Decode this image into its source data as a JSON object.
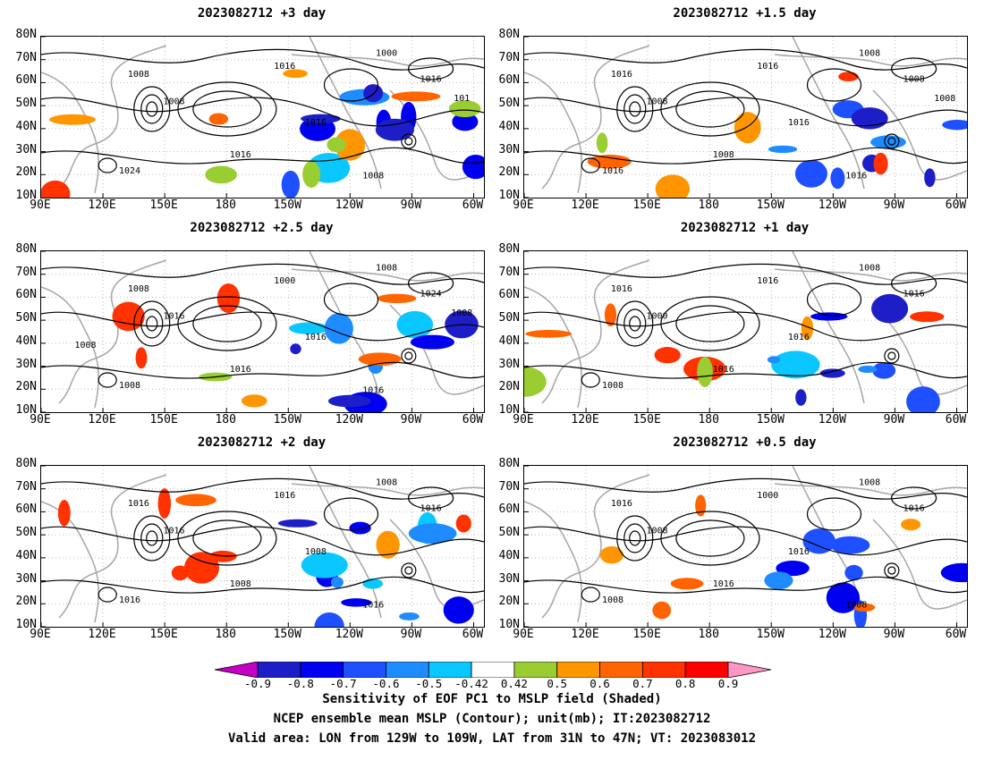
{
  "panels": [
    {
      "title": "2023082712 +3 day",
      "contour_labels": [
        "1000",
        "1008",
        "1008",
        "1016",
        "1016",
        "1016",
        "1024",
        "1016",
        "1008",
        "101"
      ]
    },
    {
      "title": "2023082712 +1.5 day",
      "contour_labels": [
        "1008",
        "1016",
        "1008",
        "1016",
        "1016",
        "1008",
        "1016",
        "1008",
        "1016",
        "1008"
      ]
    },
    {
      "title": "2023082712 +2.5 day",
      "contour_labels": [
        "1008",
        "1008",
        "1016",
        "1016",
        "1000",
        "1024",
        "1008",
        "1016",
        "1016",
        "1008",
        "1008"
      ]
    },
    {
      "title": "2023082712 +1 day",
      "contour_labels": [
        "1008",
        "1016",
        "1000",
        "1016",
        "1016",
        "1016",
        "1008",
        "1016"
      ]
    },
    {
      "title": "2023082712 +2 day",
      "contour_labels": [
        "1008",
        "1016",
        "1016",
        "1008",
        "1016",
        "1016",
        "1016",
        "1008",
        "1016"
      ]
    },
    {
      "title": "2023082712 +0.5 day",
      "contour_labels": [
        "1008",
        "1016",
        "1008",
        "1016",
        "1000",
        "1016",
        "1008",
        "1016",
        "1008"
      ]
    }
  ],
  "lat_ticks": [
    "80N",
    "70N",
    "60N",
    "50N",
    "40N",
    "30N",
    "20N",
    "10N"
  ],
  "lon_ticks": [
    "90E",
    "120E",
    "150E",
    "180",
    "150W",
    "120W",
    "90W",
    "60W"
  ],
  "colorbar": {
    "labels": [
      "-0.9",
      "-0.8",
      "-0.7",
      "-0.6",
      "-0.5",
      "-0.42",
      "0.42",
      "0.5",
      "0.6",
      "0.7",
      "0.8",
      "0.9"
    ],
    "colors": [
      "#c300c3",
      "#1e1ec8",
      "#0000f0",
      "#1e50ff",
      "#1e8cff",
      "#0ac8ff",
      "#ffffff",
      "#9acd32",
      "#ff9600",
      "#ff6400",
      "#ff3200",
      "#ff0000",
      "#ff96c8"
    ]
  },
  "caption": {
    "line1": "Sensitivity of EOF PC1 to MSLP field (Shaded)",
    "line2": "NCEP ensemble mean MSLP (Contour); unit(mb); IT:2023082712",
    "line3": "Valid area: LON from 129W to 109W, LAT from 31N to 47N; VT: 2023083012"
  }
}
